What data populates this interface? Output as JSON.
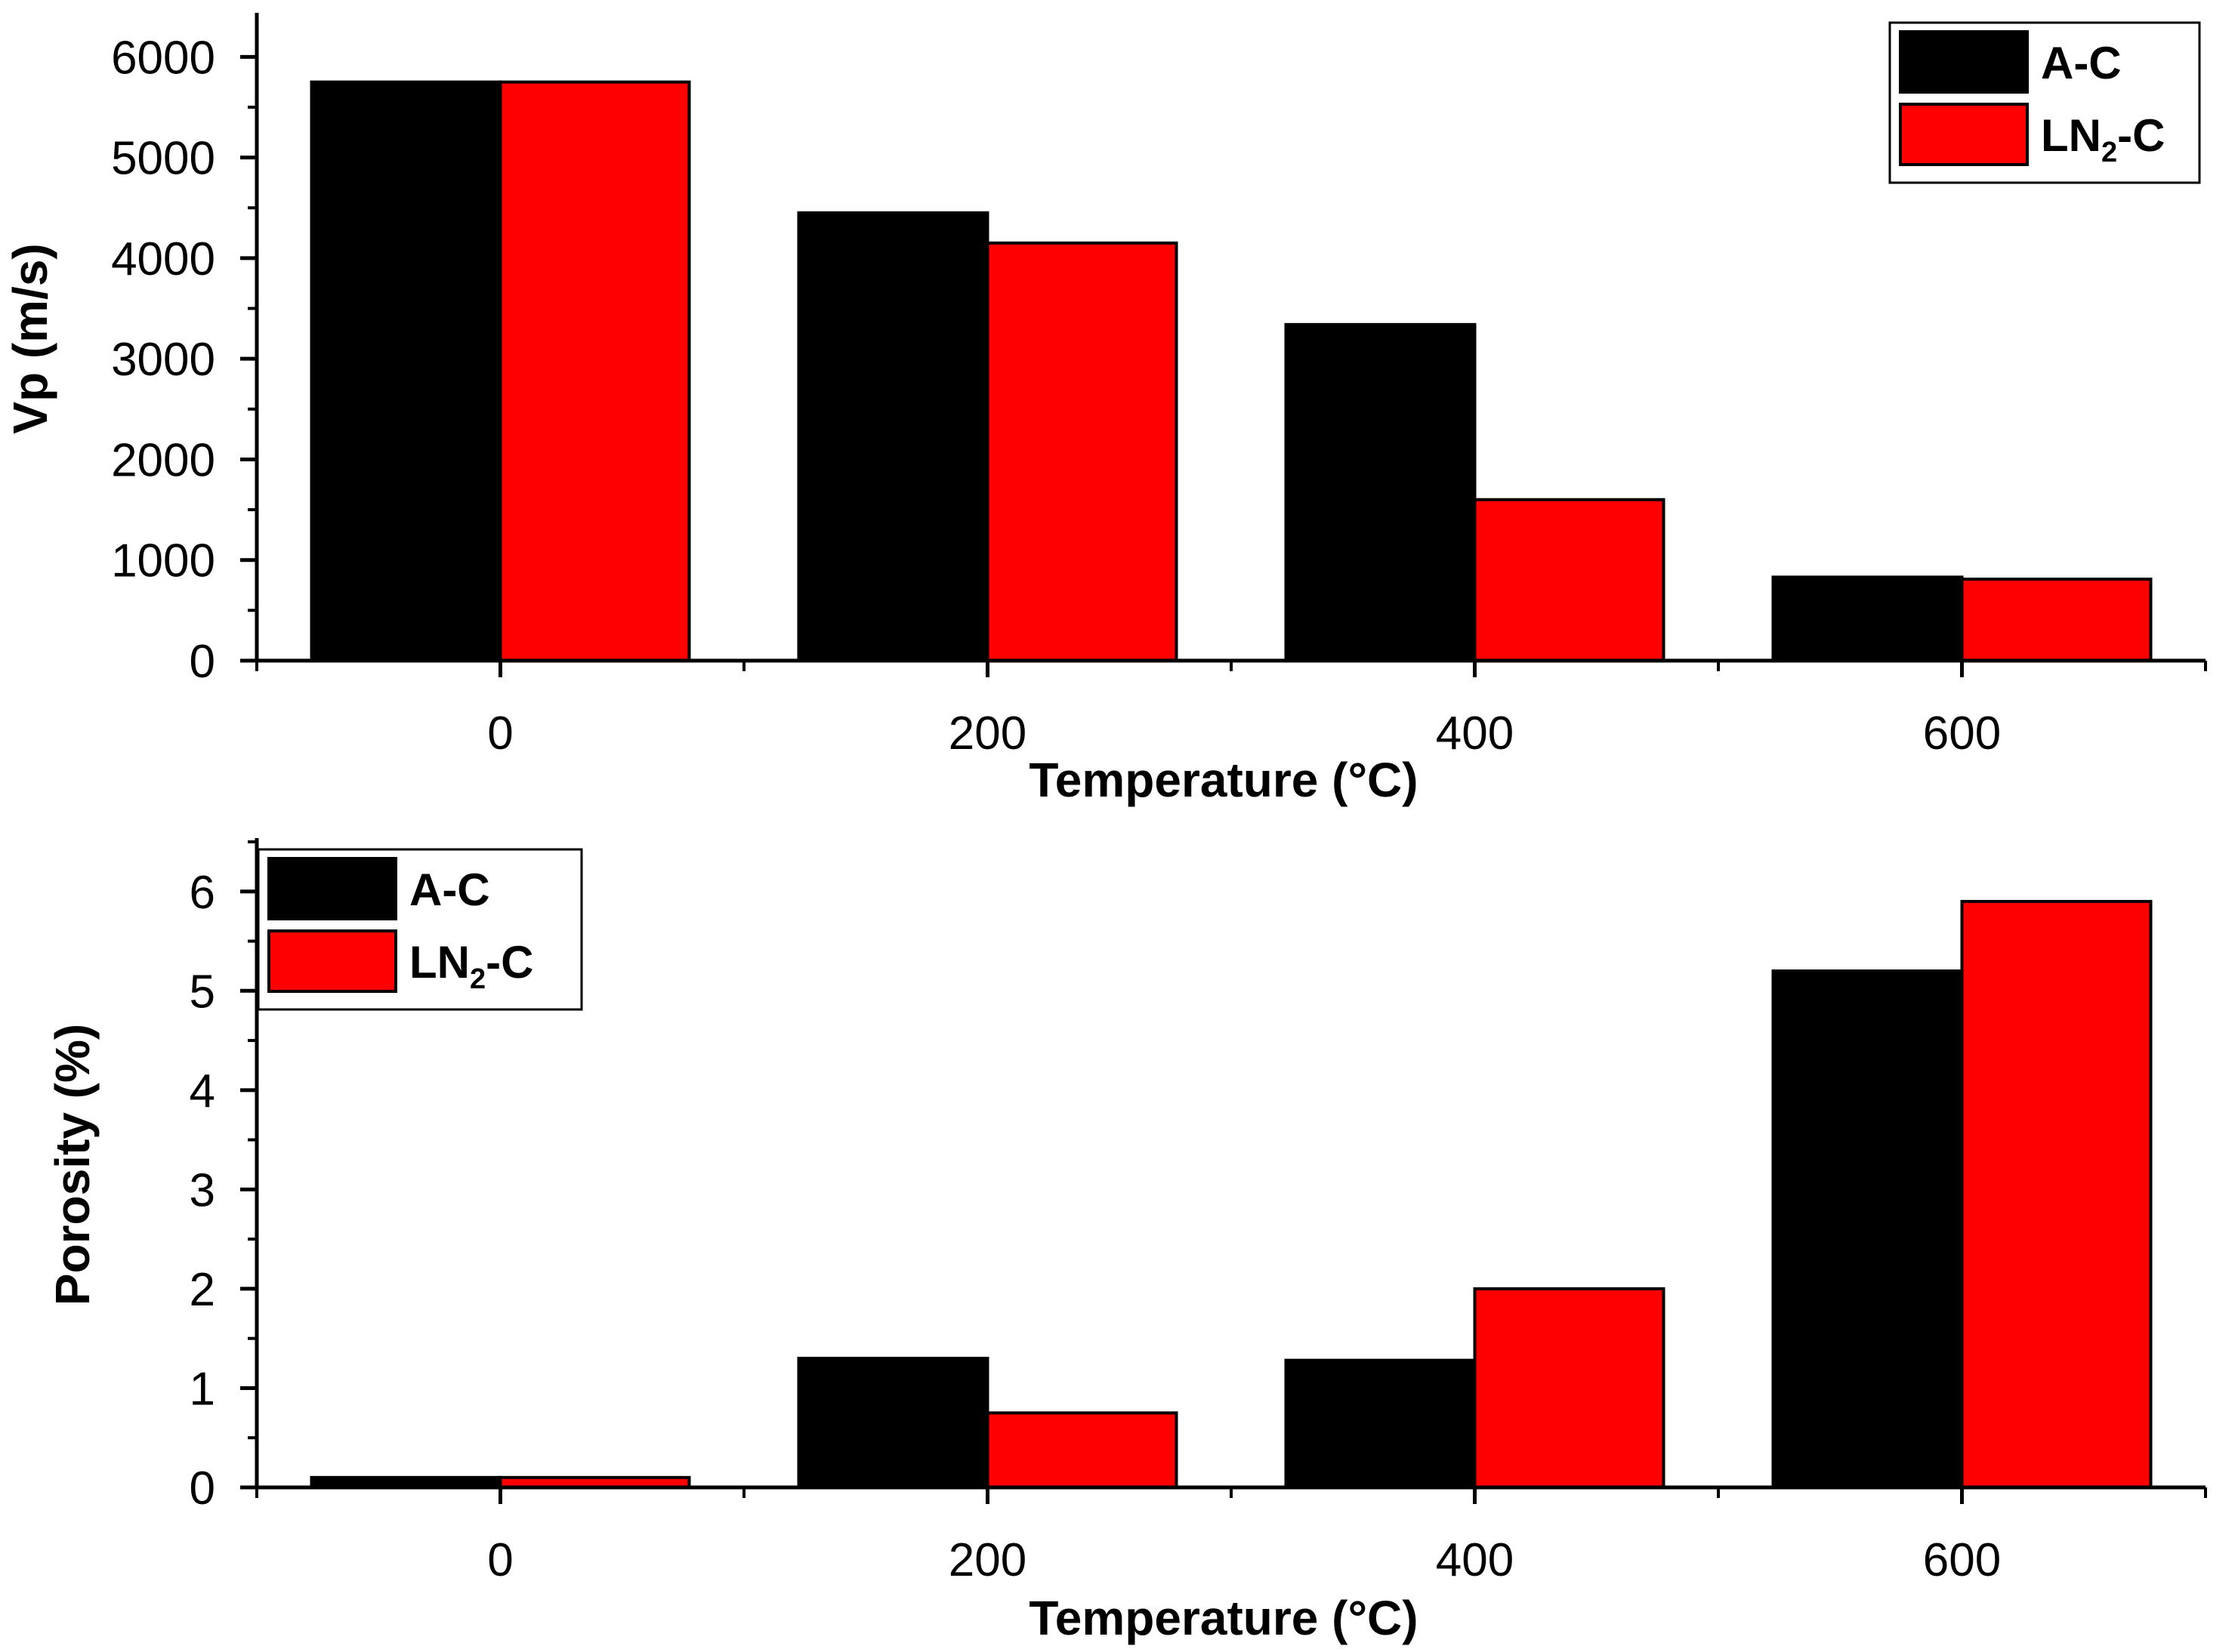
{
  "chart_data": [
    {
      "type": "bar",
      "title": "",
      "categories": [
        "0",
        "200",
        "400",
        "600"
      ],
      "x": [
        0,
        200,
        400,
        600
      ],
      "xlabel": "Temperature (°C)",
      "ylabel": "Vp (m/s)",
      "xlim": [
        -100,
        700
      ],
      "ylim": [
        0,
        6400
      ],
      "yticks": [
        0,
        1000,
        2000,
        3000,
        4000,
        5000,
        6000
      ],
      "ytick_labels": [
        "0",
        "1000",
        "2000",
        "3000",
        "4000",
        "5000",
        "6000"
      ],
      "grid": false,
      "legend_position": "top-right",
      "series": [
        {
          "name": "A-C",
          "name_main": "A-C",
          "name_sub": "",
          "name_tail": "",
          "color": "#000000",
          "values": [
            5750,
            4450,
            3340,
            830
          ]
        },
        {
          "name": "LN2-C",
          "name_main": "LN",
          "name_sub": "2",
          "name_tail": "-C",
          "color": "#ff0000",
          "values": [
            5750,
            4150,
            1600,
            810
          ]
        }
      ]
    },
    {
      "type": "bar",
      "title": "",
      "categories": [
        "0",
        "200",
        "400",
        "600"
      ],
      "x": [
        0,
        200,
        400,
        600
      ],
      "xlabel": "Temperature (°C)",
      "ylabel": "Porosity (%)",
      "xlim": [
        -100,
        700
      ],
      "ylim": [
        0,
        6.5
      ],
      "yticks": [
        0,
        1,
        2,
        3,
        4,
        5,
        6
      ],
      "ytick_labels": [
        "0",
        "1",
        "2",
        "3",
        "4",
        "5",
        "6"
      ],
      "grid": false,
      "legend_position": "top-left",
      "series": [
        {
          "name": "A-C",
          "name_main": "A-C",
          "name_sub": "",
          "name_tail": "",
          "color": "#000000",
          "values": [
            0.1,
            1.3,
            1.28,
            5.2
          ]
        },
        {
          "name": "LN2-C",
          "name_main": "LN",
          "name_sub": "2",
          "name_tail": "-C",
          "color": "#ff0000",
          "values": [
            0.1,
            0.75,
            2.0,
            5.9
          ]
        }
      ]
    }
  ]
}
